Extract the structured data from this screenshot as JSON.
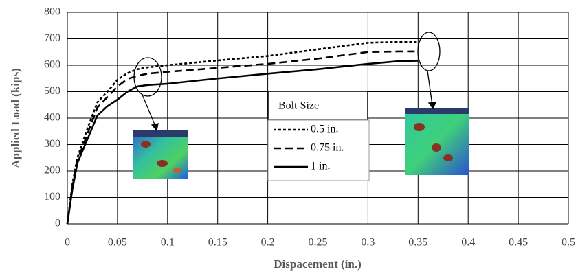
{
  "chart_data": {
    "type": "line",
    "x_label": "Dispacement (in.)",
    "y_label": "Applied Load (kips)",
    "legend_title": "Bolt Size",
    "xlim": [
      0,
      0.5
    ],
    "ylim": [
      0,
      800
    ],
    "xticks": [
      0,
      0.05,
      0.1,
      0.15,
      0.2,
      0.25,
      0.3,
      0.35,
      0.4,
      0.45,
      0.5
    ],
    "yticks": [
      0,
      100,
      200,
      300,
      400,
      500,
      600,
      700,
      800
    ],
    "grid": true,
    "x": [
      0,
      0.005,
      0.01,
      0.02,
      0.03,
      0.04,
      0.05,
      0.06,
      0.07,
      0.08,
      0.1,
      0.15,
      0.2,
      0.25,
      0.3,
      0.33,
      0.35
    ],
    "series": [
      {
        "name": "0.5 in.",
        "color": "#000000",
        "dash": "4,3",
        "values": [
          0,
          150,
          250,
          360,
          460,
          500,
          545,
          570,
          585,
          592,
          600,
          618,
          635,
          660,
          685,
          688,
          688
        ]
      },
      {
        "name": "0.75 in.",
        "color": "#000000",
        "dash": "11,6",
        "values": [
          0,
          140,
          240,
          340,
          440,
          480,
          520,
          548,
          560,
          568,
          575,
          590,
          605,
          625,
          650,
          652,
          652
        ]
      },
      {
        "name": "1 in.",
        "color": "#000000",
        "dash": "none",
        "values": [
          0,
          130,
          230,
          320,
          410,
          445,
          470,
          500,
          520,
          525,
          530,
          550,
          568,
          585,
          605,
          615,
          617
        ]
      }
    ]
  }
}
